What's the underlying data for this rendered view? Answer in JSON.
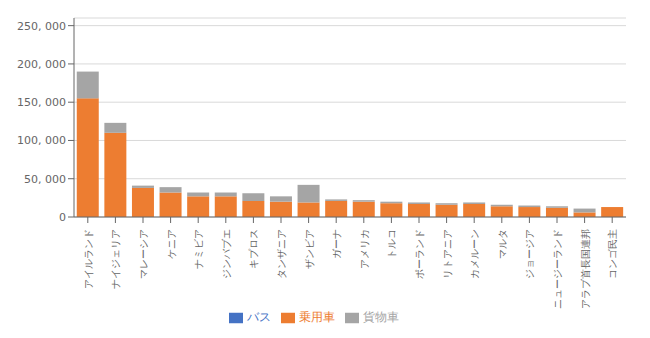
{
  "chart_data": {
    "type": "bar",
    "stacked": true,
    "categories": [
      "アイルランド",
      "ナイジェリア",
      "マレーシア",
      "ケニア",
      "ナミビア",
      "ジンバブエ",
      "キプロス",
      "タンザニア",
      "ザンビア",
      "ガーナ",
      "アメリカ",
      "トルコ",
      "ポーランド",
      "リトアニア",
      "カメルーン",
      "マルタ",
      "ジョージア",
      "ニュージーランド",
      "アラブ首長国連邦",
      "コンゴ民主"
    ],
    "series": [
      {
        "name": "バス",
        "color": "#4472c4",
        "values": [
          0,
          0,
          0,
          0,
          0,
          0,
          0,
          0,
          0,
          0,
          0,
          0,
          0,
          0,
          0,
          0,
          0,
          0,
          0,
          0
        ]
      },
      {
        "name": "乗用車",
        "color": "#ed7d31",
        "values": [
          155000,
          110000,
          38000,
          32000,
          27000,
          27000,
          21000,
          20000,
          19000,
          21000,
          20000,
          18000,
          17000,
          16000,
          17000,
          14000,
          13000,
          12000,
          6000,
          13000
        ]
      },
      {
        "name": "貨物車",
        "color": "#a5a5a5",
        "values": [
          35000,
          13000,
          3000,
          7000,
          5000,
          5000,
          10000,
          7000,
          23000,
          2000,
          2000,
          2000,
          2000,
          2000,
          2000,
          2000,
          2000,
          2000,
          5000,
          0
        ]
      }
    ],
    "ylim": [
      0,
      260000
    ],
    "yticks": [
      0,
      {
        "value": 50000,
        "label": "50, 000"
      },
      {
        "value": 100000,
        "label": "100, 000"
      },
      {
        "value": 150000,
        "label": "150, 000"
      },
      {
        "value": 200000,
        "label": "200, 000"
      },
      {
        "value": 250000,
        "label": "250, 000"
      }
    ],
    "grid": true,
    "legend": "bottom"
  }
}
